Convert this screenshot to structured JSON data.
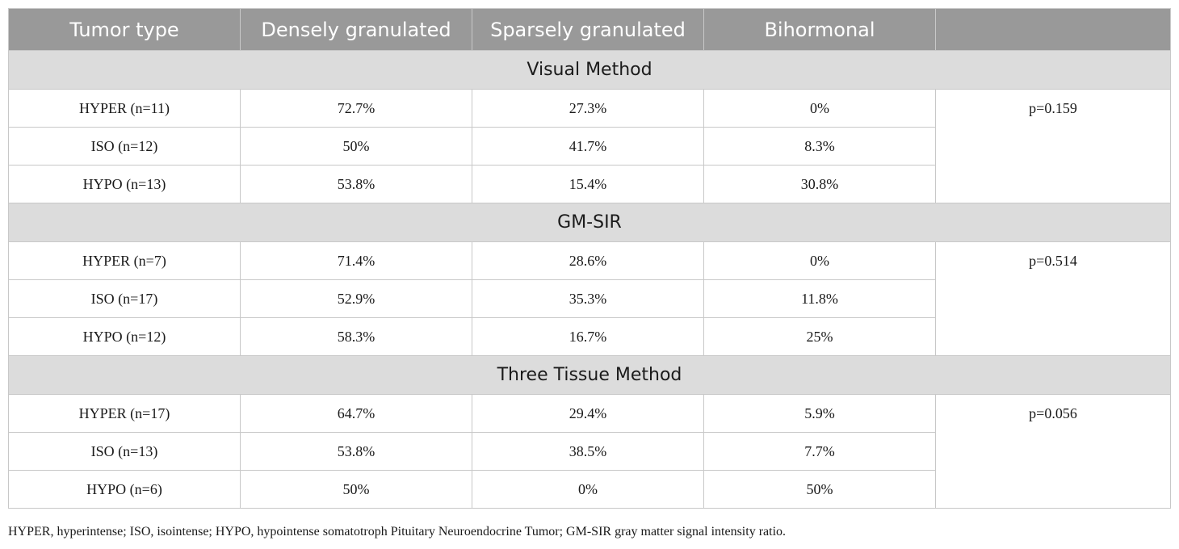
{
  "headers": [
    "Tumor type",
    "Densely granulated",
    "Sparsely granulated",
    "Bihormonal",
    ""
  ],
  "sections": [
    {
      "title": "Visual Method",
      "p_value": "p=0.159",
      "rows": [
        [
          "HYPER (n=11)",
          "72.7%",
          "27.3%",
          "0%"
        ],
        [
          "ISO (n=12)",
          "50%",
          "41.7%",
          "8.3%"
        ],
        [
          "HYPO (n=13)",
          "53.8%",
          "15.4%",
          "30.8%"
        ]
      ]
    },
    {
      "title": "GM-SIR",
      "p_value": "p=0.514",
      "rows": [
        [
          "HYPER (n=7)",
          "71.4%",
          "28.6%",
          "0%"
        ],
        [
          "ISO (n=17)",
          "52.9%",
          "35.3%",
          "11.8%"
        ],
        [
          "HYPO (n=12)",
          "58.3%",
          "16.7%",
          "25%"
        ]
      ]
    },
    {
      "title": "Three Tissue Method",
      "p_value": "p=0.056",
      "rows": [
        [
          "HYPER (n=17)",
          "64.7%",
          "29.4%",
          "5.9%"
        ],
        [
          "ISO (n=13)",
          "53.8%",
          "38.5%",
          "7.7%"
        ],
        [
          "HYPO (n=6)",
          "50%",
          "0%",
          "50%"
        ]
      ]
    }
  ],
  "footnote": "HYPER, hyperintense; ISO, isointense; HYPO, hypointense somatotroph Pituitary Neuroendocrine Tumor; GM-SIR gray matter signal intensity ratio.",
  "colors": {
    "header_bg": "#999999",
    "section_bg": "#dcdcdc",
    "border": "#c8c8c8"
  }
}
